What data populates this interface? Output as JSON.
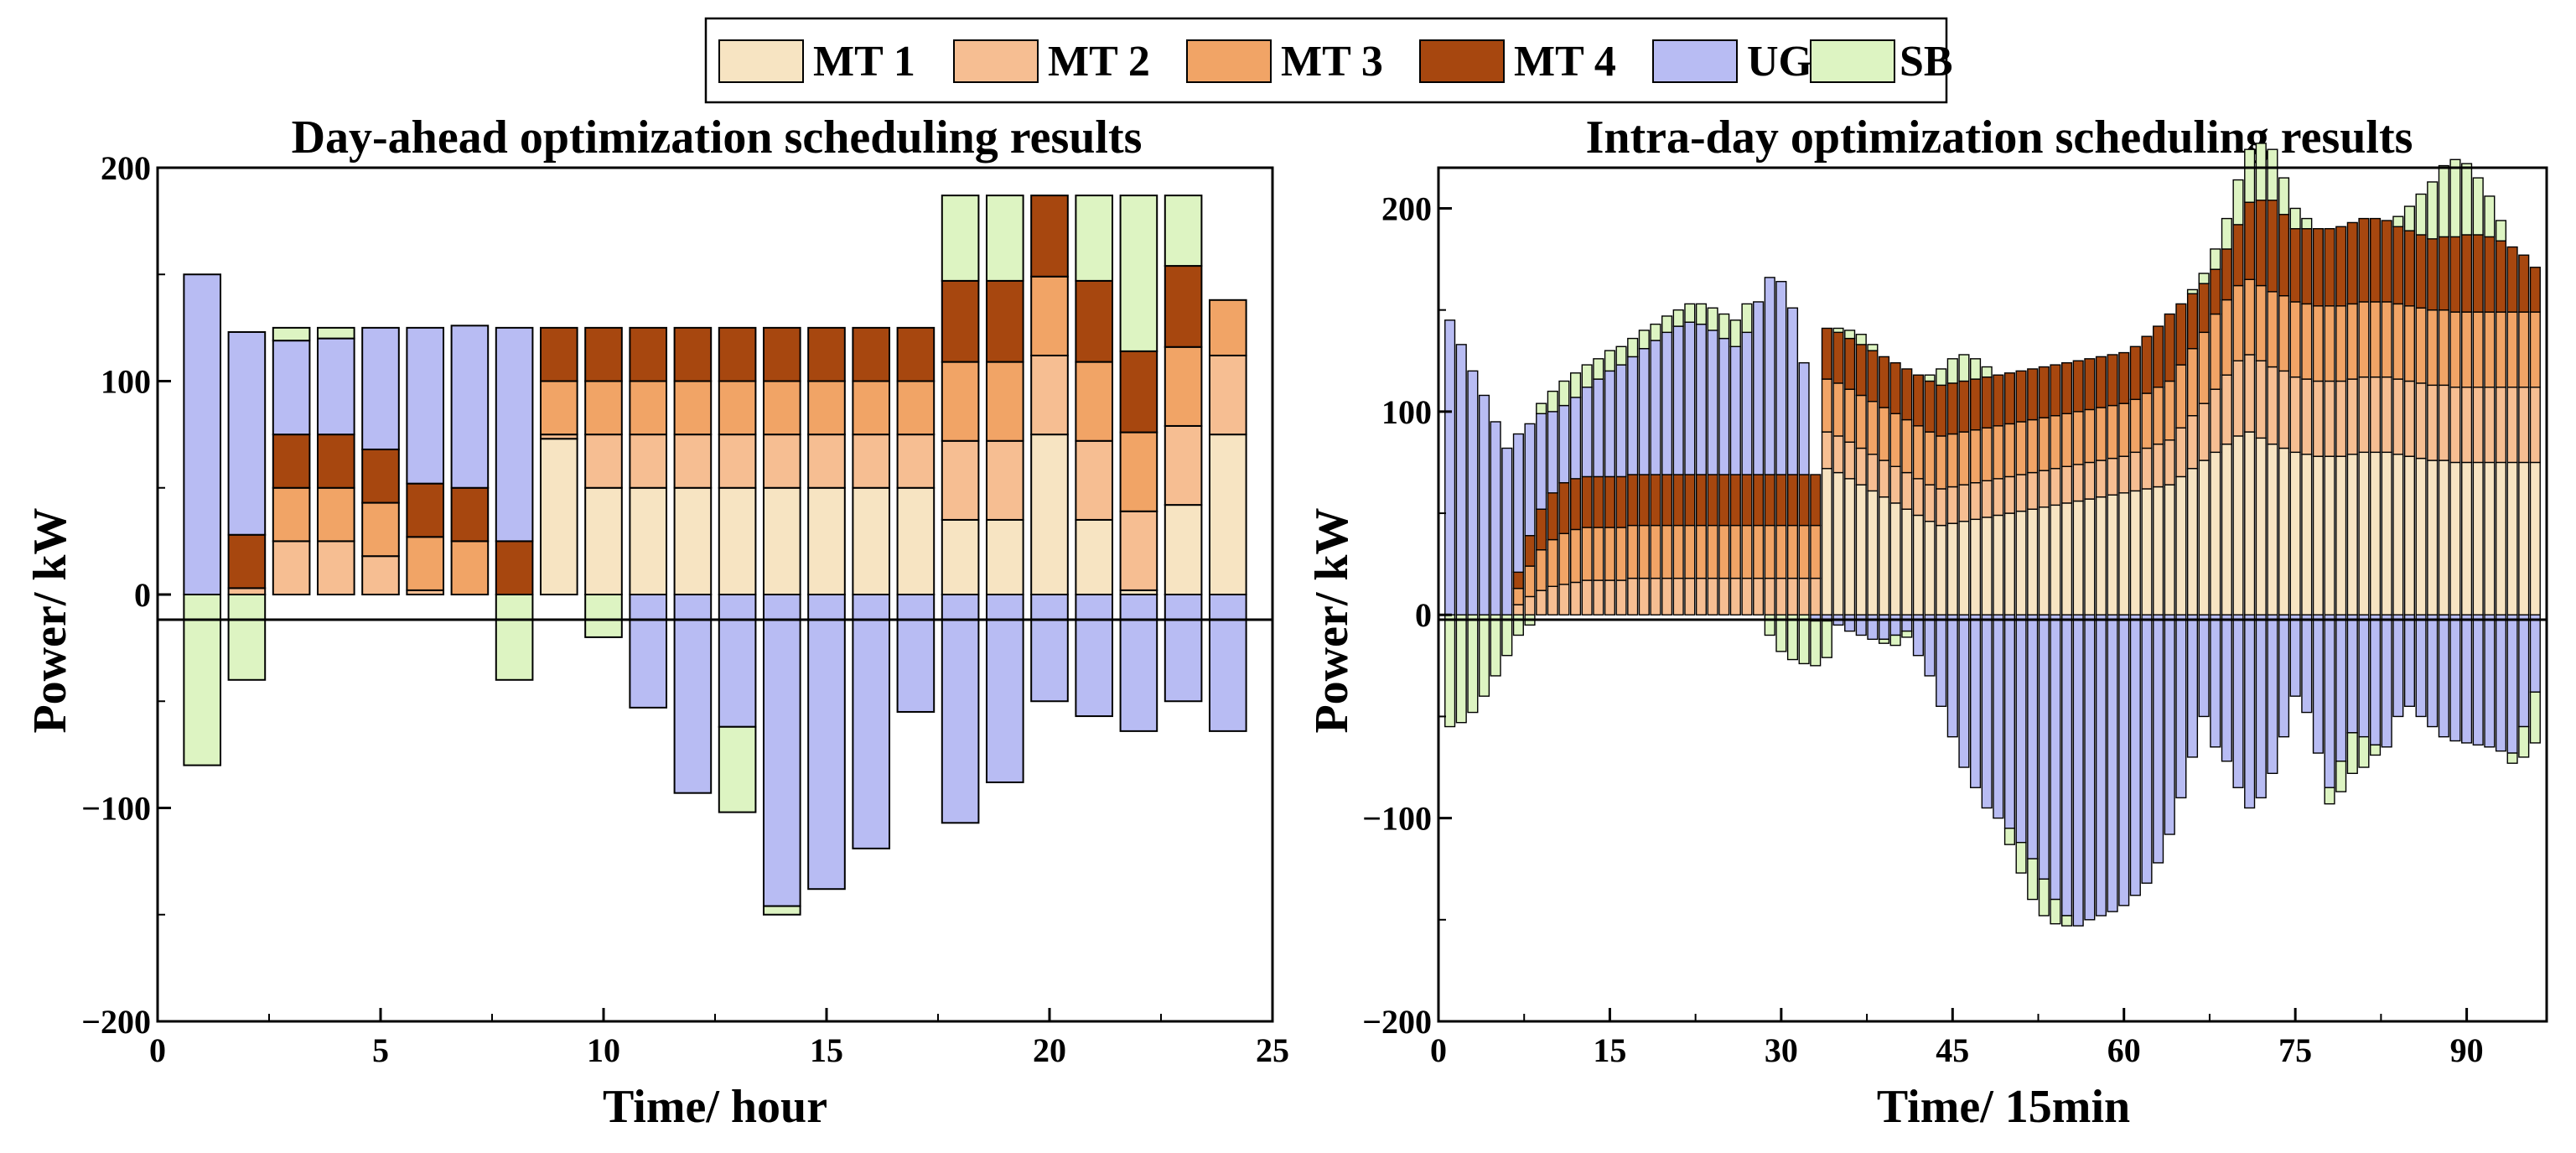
{
  "legend": {
    "items": [
      {
        "key": "MT1",
        "label": "MT 1",
        "color": "#F7E4C2"
      },
      {
        "key": "MT2",
        "label": "MT 2",
        "color": "#F6BE92"
      },
      {
        "key": "MT3",
        "label": "MT 3",
        "color": "#F1A466"
      },
      {
        "key": "MT4",
        "label": "MT 4",
        "color": "#A7470F"
      },
      {
        "key": "UG",
        "label": "UG",
        "color": "#B8BCF3"
      },
      {
        "key": "SB",
        "label": "SB",
        "color": "#DDF4C2"
      }
    ]
  },
  "chart_data": [
    {
      "type": "bar",
      "stacked": true,
      "title": "Day-ahead optimization scheduling results",
      "xlabel": "Time/ hour",
      "ylabel": "Power/ kW",
      "xlim": [
        0,
        25
      ],
      "ylim": [
        -200,
        200
      ],
      "xticks": [
        0,
        5,
        10,
        15,
        20,
        25
      ],
      "yticks": [
        -200,
        -100,
        0,
        100,
        200
      ],
      "ytick_labels": [
        "−200",
        "−100",
        "0",
        "100",
        "200"
      ],
      "x": [
        1,
        2,
        3,
        4,
        5,
        6,
        7,
        8,
        9,
        10,
        11,
        12,
        13,
        14,
        15,
        16,
        17,
        18,
        19,
        20,
        21,
        22,
        23,
        24
      ],
      "series": [
        {
          "name": "MT 1",
          "values": [
            0,
            0,
            0,
            0,
            0,
            0,
            0,
            0,
            73,
            50,
            50,
            50,
            50,
            50,
            50,
            50,
            50,
            35,
            35,
            75,
            35,
            2,
            42,
            75
          ]
        },
        {
          "name": "MT 2",
          "values": [
            0,
            3,
            25,
            25,
            18,
            2,
            0,
            0,
            2,
            25,
            25,
            25,
            25,
            25,
            25,
            25,
            25,
            37,
            37,
            37,
            37,
            37,
            37,
            37
          ]
        },
        {
          "name": "MT 3",
          "values": [
            0,
            0,
            25,
            25,
            25,
            25,
            25,
            0,
            25,
            25,
            25,
            25,
            25,
            25,
            25,
            25,
            25,
            37,
            37,
            37,
            37,
            37,
            37,
            26
          ]
        },
        {
          "name": "MT 4",
          "values": [
            0,
            25,
            25,
            25,
            25,
            25,
            25,
            25,
            25,
            25,
            25,
            25,
            25,
            25,
            25,
            25,
            25,
            38,
            38,
            38,
            38,
            38,
            38,
            0
          ]
        },
        {
          "name": "UG",
          "values": [
            150,
            95,
            44,
            45,
            57,
            73,
            76,
            100,
            0,
            0,
            -53,
            -93,
            -62,
            -146,
            -138,
            -119,
            -55,
            -107,
            -88,
            -50,
            -57,
            -64,
            -50,
            -64
          ]
        },
        {
          "name": "SB",
          "values": [
            -80,
            -40,
            6,
            5,
            0,
            0,
            0,
            -40,
            0,
            -20,
            0,
            0,
            -40,
            -4,
            0,
            0,
            0,
            40,
            40,
            0,
            40,
            73,
            33,
            0
          ]
        }
      ]
    },
    {
      "type": "bar",
      "stacked": true,
      "title": "Intra-day optimization scheduling results",
      "xlabel": "Time/ 15min",
      "ylabel": "Power/ kW",
      "xlim": [
        0,
        97
      ],
      "ylim": [
        -200,
        220
      ],
      "xticks": [
        0,
        15,
        30,
        45,
        60,
        75,
        90
      ],
      "yticks": [
        -200,
        -100,
        0,
        100,
        200
      ],
      "ytick_labels": [
        "−200",
        "−100",
        "0",
        "100",
        "200"
      ],
      "x": [
        1,
        2,
        3,
        4,
        5,
        6,
        7,
        8,
        9,
        10,
        11,
        12,
        13,
        14,
        15,
        16,
        17,
        18,
        19,
        20,
        21,
        22,
        23,
        24,
        25,
        26,
        27,
        28,
        29,
        30,
        31,
        32,
        33,
        34,
        35,
        36,
        37,
        38,
        39,
        40,
        41,
        42,
        43,
        44,
        45,
        46,
        47,
        48,
        49,
        50,
        51,
        52,
        53,
        54,
        55,
        56,
        57,
        58,
        59,
        60,
        61,
        62,
        63,
        64,
        65,
        66,
        67,
        68,
        69,
        70,
        71,
        72,
        73,
        74,
        75,
        76,
        77,
        78,
        79,
        80,
        81,
        82,
        83,
        84,
        85,
        86,
        87,
        88,
        89,
        90,
        91,
        92,
        93,
        94,
        95,
        96
      ],
      "series": [
        {
          "name": "MT 1",
          "values": [
            0,
            0,
            0,
            0,
            0,
            0,
            0,
            0,
            0,
            0,
            0,
            0,
            0,
            0,
            0,
            0,
            0,
            0,
            0,
            0,
            0,
            0,
            0,
            0,
            0,
            0,
            0,
            0,
            0,
            0,
            0,
            0,
            0,
            72,
            70,
            67,
            64,
            61,
            58,
            55,
            52,
            49,
            46,
            44,
            45,
            46,
            47,
            48,
            49,
            50,
            51,
            52,
            53,
            54,
            55,
            56,
            57,
            58,
            59,
            60,
            61,
            62,
            63,
            64,
            68,
            72,
            76,
            80,
            84,
            88,
            90,
            87,
            84,
            82,
            80,
            79,
            78,
            78,
            78,
            79,
            80,
            80,
            80,
            79,
            78,
            77,
            76,
            76,
            75,
            75,
            75,
            75,
            75,
            75,
            75,
            75
          ]
        },
        {
          "name": "MT 2",
          "values": [
            0,
            0,
            0,
            0,
            0,
            0,
            5,
            9,
            12,
            14,
            15,
            16,
            17,
            17,
            17,
            17,
            18,
            18,
            18,
            18,
            18,
            18,
            18,
            18,
            18,
            18,
            18,
            18,
            18,
            18,
            18,
            18,
            18,
            18,
            18,
            18,
            18,
            18,
            18,
            18,
            18,
            18,
            18,
            18,
            18,
            18,
            18,
            18,
            18,
            18,
            18,
            18,
            18,
            18,
            18,
            18,
            18,
            18,
            18,
            18,
            19,
            20,
            21,
            22,
            24,
            26,
            28,
            31,
            34,
            37,
            38,
            38,
            38,
            38,
            37,
            37,
            37,
            37,
            37,
            37,
            37,
            37,
            37,
            37,
            37,
            37,
            37,
            37,
            37,
            37,
            37,
            37,
            37,
            37,
            37,
            37
          ]
        },
        {
          "name": "MT 3",
          "values": [
            0,
            0,
            0,
            0,
            0,
            0,
            8,
            15,
            20,
            23,
            25,
            26,
            26,
            26,
            26,
            26,
            26,
            26,
            26,
            26,
            26,
            26,
            26,
            26,
            26,
            26,
            26,
            26,
            26,
            26,
            26,
            26,
            26,
            26,
            26,
            26,
            26,
            26,
            26,
            26,
            26,
            26,
            26,
            26,
            26,
            26,
            26,
            26,
            26,
            26,
            26,
            26,
            26,
            26,
            26,
            26,
            26,
            26,
            26,
            26,
            26,
            27,
            28,
            29,
            31,
            33,
            35,
            37,
            37,
            37,
            37,
            37,
            37,
            37,
            37,
            37,
            37,
            37,
            37,
            37,
            37,
            37,
            37,
            37,
            37,
            37,
            37,
            37,
            37,
            37,
            37,
            37,
            37,
            37,
            37,
            37
          ]
        },
        {
          "name": "MT 4",
          "values": [
            0,
            0,
            0,
            0,
            0,
            0,
            8,
            15,
            20,
            23,
            25,
            25,
            25,
            25,
            25,
            25,
            25,
            25,
            25,
            25,
            25,
            25,
            25,
            25,
            25,
            25,
            25,
            25,
            25,
            25,
            25,
            25,
            25,
            25,
            25,
            25,
            25,
            25,
            25,
            25,
            25,
            25,
            25,
            25,
            25,
            25,
            25,
            25,
            25,
            25,
            25,
            25,
            25,
            25,
            25,
            25,
            25,
            25,
            25,
            25,
            26,
            28,
            30,
            33,
            30,
            27,
            24,
            22,
            25,
            30,
            38,
            42,
            45,
            40,
            36,
            37,
            38,
            38,
            39,
            40,
            41,
            41,
            40,
            38,
            37,
            36,
            35,
            36,
            37,
            38,
            38,
            37,
            35,
            32,
            28,
            22
          ]
        },
        {
          "name": "UG",
          "values": [
            145,
            133,
            120,
            108,
            95,
            82,
            68,
            55,
            47,
            40,
            38,
            40,
            44,
            48,
            52,
            55,
            58,
            62,
            66,
            70,
            73,
            75,
            74,
            71,
            67,
            63,
            70,
            85,
            97,
            95,
            82,
            55,
            -3,
            -3,
            -5,
            -8,
            -10,
            -12,
            -12,
            -10,
            -8,
            -20,
            -30,
            -45,
            -60,
            -75,
            -85,
            -95,
            -100,
            -105,
            -112,
            -120,
            -130,
            -140,
            -148,
            -153,
            -150,
            -148,
            -146,
            -143,
            -138,
            -132,
            -122,
            -108,
            -90,
            -70,
            -50,
            -65,
            -72,
            -85,
            -95,
            -90,
            -78,
            -60,
            -40,
            -48,
            -68,
            -85,
            -72,
            -58,
            -60,
            -64,
            -65,
            -50,
            -45,
            -50,
            -55,
            -60,
            -62,
            -63,
            -64,
            -65,
            -67,
            -68,
            -55,
            -38
          ]
        },
        {
          "name": "SB",
          "values": [
            -55,
            -53,
            -48,
            -40,
            -30,
            -20,
            -10,
            -5,
            5,
            10,
            12,
            12,
            11,
            10,
            10,
            9,
            9,
            9,
            8,
            8,
            8,
            9,
            10,
            11,
            12,
            13,
            14,
            0,
            -10,
            -18,
            -22,
            -24,
            -22,
            -18,
            2,
            4,
            5,
            3,
            -2,
            -5,
            -3,
            0,
            3,
            8,
            12,
            13,
            10,
            5,
            0,
            -8,
            -15,
            -20,
            -18,
            -12,
            -5,
            0,
            0,
            0,
            0,
            0,
            0,
            0,
            0,
            0,
            0,
            2,
            5,
            10,
            15,
            22,
            26,
            28,
            25,
            18,
            10,
            5,
            0,
            -8,
            -15,
            -20,
            -15,
            -5,
            0,
            5,
            12,
            20,
            28,
            35,
            38,
            35,
            28,
            20,
            10,
            -5,
            -15,
            -25
          ]
        }
      ]
    }
  ]
}
